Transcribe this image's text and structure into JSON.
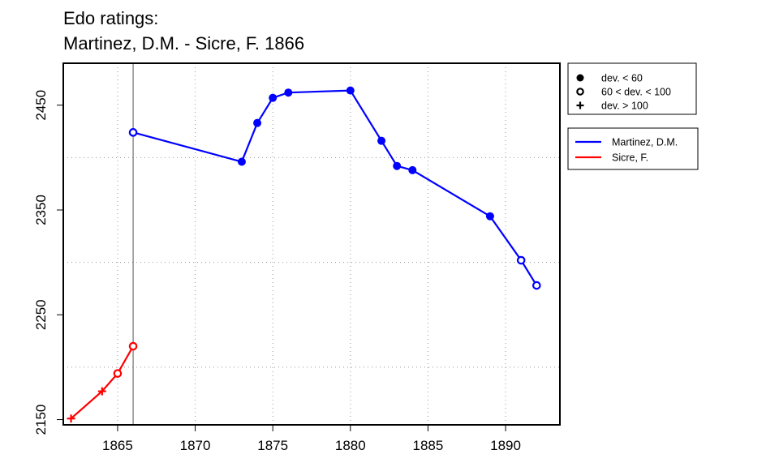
{
  "chart_data": {
    "type": "line",
    "title": "Edo ratings:",
    "subtitle": "Martinez, D.M. - Sicre, F. 1866",
    "xlabel": "",
    "ylabel": "",
    "xlim": [
      1861.5,
      1893.5
    ],
    "ylim": [
      2145,
      2490
    ],
    "x_ticks": [
      1865,
      1870,
      1875,
      1880,
      1885,
      1890
    ],
    "y_ticks": [
      2150,
      2250,
      2350,
      2450
    ],
    "grid_x": [
      1865,
      1870,
      1875,
      1880,
      1885,
      1890
    ],
    "grid_y": [
      2200,
      2300,
      2400
    ],
    "grid": true,
    "vline": 1866,
    "series": [
      {
        "name": "Martinez, D.M.",
        "color": "#0000ff",
        "points": [
          {
            "x": 1866,
            "y": 2424,
            "marker": "open"
          },
          {
            "x": 1873,
            "y": 2396,
            "marker": "filled"
          },
          {
            "x": 1874,
            "y": 2433,
            "marker": "filled"
          },
          {
            "x": 1875,
            "y": 2457,
            "marker": "filled"
          },
          {
            "x": 1876,
            "y": 2462,
            "marker": "filled"
          },
          {
            "x": 1880,
            "y": 2464,
            "marker": "filled"
          },
          {
            "x": 1882,
            "y": 2416,
            "marker": "filled"
          },
          {
            "x": 1883,
            "y": 2392,
            "marker": "filled"
          },
          {
            "x": 1884,
            "y": 2388,
            "marker": "filled"
          },
          {
            "x": 1889,
            "y": 2344,
            "marker": "filled"
          },
          {
            "x": 1891,
            "y": 2302,
            "marker": "open"
          },
          {
            "x": 1892,
            "y": 2278,
            "marker": "open"
          }
        ]
      },
      {
        "name": "Sicre, F.",
        "color": "#ff0000",
        "points": [
          {
            "x": 1862,
            "y": 2151,
            "marker": "plus"
          },
          {
            "x": 1864,
            "y": 2177,
            "marker": "plus"
          },
          {
            "x": 1865,
            "y": 2194,
            "marker": "open"
          },
          {
            "x": 1866,
            "y": 2220,
            "marker": "open"
          }
        ]
      }
    ],
    "marker_legend": [
      {
        "marker": "filled",
        "label": "dev. < 60"
      },
      {
        "marker": "open",
        "label": "60 < dev. < 100"
      },
      {
        "marker": "plus",
        "label": "dev. > 100"
      }
    ],
    "legend_position": "right"
  }
}
